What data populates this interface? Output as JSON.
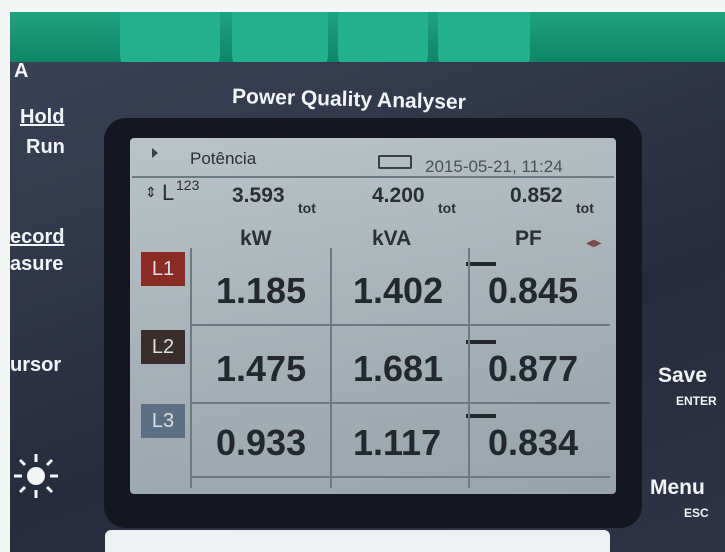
{
  "device": {
    "corner_label": "A",
    "title": "Power Quality Analyser",
    "left_buttons": [
      [
        "Hold",
        "Run"
      ],
      [
        "ecord",
        "asure"
      ],
      [
        "ursor"
      ]
    ],
    "right_buttons": [
      {
        "label": "Save",
        "sub": "ENTER"
      },
      {
        "label": "Menu",
        "sub": "ESC"
      }
    ]
  },
  "screen": {
    "mode": "Potência",
    "timestamp": "2015-05-21, 11:24",
    "phase": "L",
    "phase_sub": "123",
    "totals": [
      {
        "value": "3.593",
        "sub": "tot"
      },
      {
        "value": "4.200",
        "sub": "tot"
      },
      {
        "value": "0.852",
        "sub": "tot"
      }
    ],
    "columns": [
      "kW",
      "kVA",
      "PF"
    ],
    "rows": [
      {
        "phase": "L1",
        "values": [
          "1.185",
          "1.402",
          "0.845"
        ]
      },
      {
        "phase": "L2",
        "values": [
          "1.475",
          "1.681",
          "0.877"
        ]
      },
      {
        "phase": "L3",
        "values": [
          "0.933",
          "1.117",
          "0.834"
        ]
      }
    ]
  }
}
